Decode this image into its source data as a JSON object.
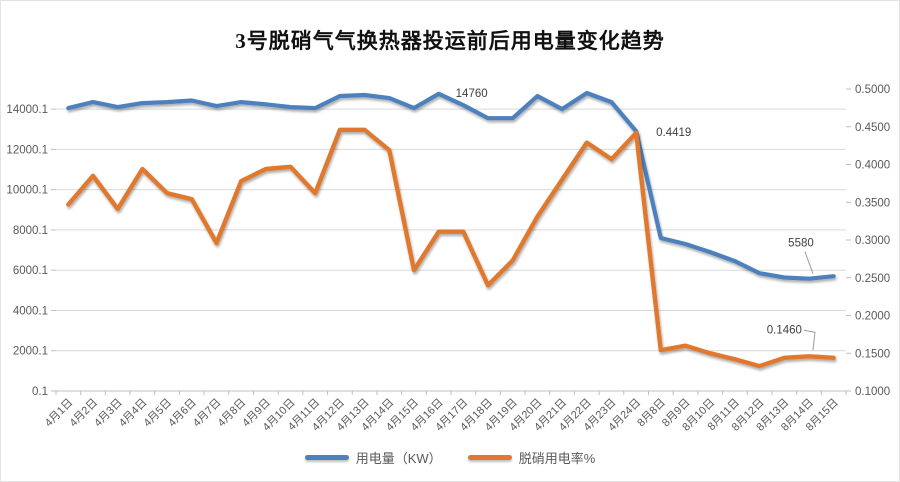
{
  "title": "3号脱硝气气换热器投运前后用电量变化趋势",
  "colors": {
    "series_blue": "#4E81BD",
    "series_orange": "#E0792F",
    "gridline": "#D9D9D9",
    "axis_line": "#BFBFBF",
    "tick_label": "#595959",
    "data_label": "#404040"
  },
  "chart_data": {
    "type": "line",
    "title": "3号脱硝气气换热器投运前后用电量变化趋势",
    "grid": "horizontal",
    "legend_position": "bottom",
    "categories": [
      "4月1日",
      "4月2日",
      "4月3日",
      "4月4日",
      "4月5日",
      "4月6日",
      "4月7日",
      "4月8日",
      "4月9日",
      "4月10日",
      "4月11日",
      "4月12日",
      "4月13日",
      "4月14日",
      "4月15日",
      "4月16日",
      "4月17日",
      "4月18日",
      "4月19日",
      "4月20日",
      "4月21日",
      "4月22日",
      "4月23日",
      "4月24日",
      "8月8日",
      "8月9日",
      "8月10日",
      "8月11日",
      "8月12日",
      "8月13日",
      "8月14日",
      "8月15日"
    ],
    "series": [
      {
        "name": "用电量（KW）",
        "axis": "left",
        "color": "#4E81BD",
        "values": [
          14050,
          14350,
          14100,
          14300,
          14350,
          14430,
          14150,
          14350,
          14240,
          14100,
          14050,
          14650,
          14700,
          14550,
          14050,
          14760,
          14200,
          13550,
          13550,
          14650,
          14000,
          14800,
          14350,
          12900,
          7600,
          7300,
          6900,
          6450,
          5850,
          5640,
          5580,
          5700
        ]
      },
      {
        "name": "脱硝用电率%",
        "axis": "right",
        "color": "#E0792F",
        "values": [
          0.347,
          0.385,
          0.341,
          0.394,
          0.362,
          0.354,
          0.296,
          0.378,
          0.394,
          0.397,
          0.362,
          0.446,
          0.446,
          0.419,
          0.26,
          0.311,
          0.311,
          0.24,
          0.273,
          0.331,
          0.38,
          0.429,
          0.407,
          0.4419,
          0.154,
          0.16,
          0.15,
          0.142,
          0.133,
          0.144,
          0.146,
          0.144
        ]
      }
    ],
    "left_axis": {
      "min": 0.1,
      "max": 15000.1,
      "major_unit": 2000,
      "ticks": [
        "0.1",
        "2000.1",
        "4000.1",
        "6000.1",
        "8000.1",
        "10000.1",
        "12000.1",
        "14000.1"
      ]
    },
    "right_axis": {
      "min": 0.1,
      "max": 0.5,
      "major_unit": 0.05,
      "ticks": [
        "0.1000",
        "0.1500",
        "0.2000",
        "0.2500",
        "0.3000",
        "0.3500",
        "0.4000",
        "0.4500",
        "0.5000"
      ]
    },
    "annotations": [
      {
        "text": "14760",
        "series": 0,
        "index": 15
      },
      {
        "text": "0.4419",
        "series": 1,
        "index": 23
      },
      {
        "text": "5580",
        "series": 0,
        "index": 30
      },
      {
        "text": "0.1460",
        "series": 1,
        "index": 30
      }
    ]
  }
}
